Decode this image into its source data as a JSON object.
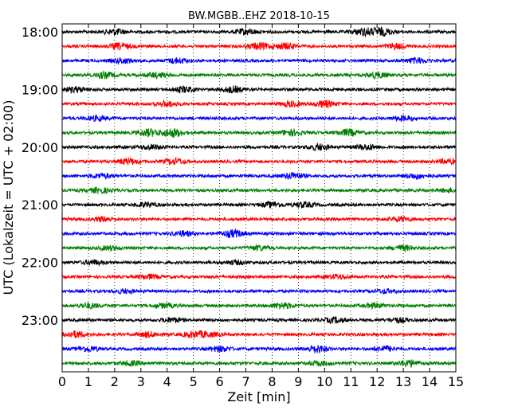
{
  "chart_data": {
    "type": "line",
    "title": "BW.MGBB..EHZ 2018-10-15",
    "xlabel": "Zeit  [min]",
    "ylabel": "UTC (Lokalzeit = UTC + 02:00)",
    "xlim": [
      0,
      15
    ],
    "x_ticks": [
      0,
      1,
      2,
      3,
      4,
      5,
      6,
      7,
      8,
      9,
      10,
      11,
      12,
      13,
      14,
      15
    ],
    "y_tick_labels": [
      "18:00",
      "19:00",
      "20:00",
      "21:00",
      "22:00",
      "23:00"
    ],
    "trace_interval_minutes": 15,
    "grid": "vertical dotted at each minute",
    "series_colors": [
      "#000000",
      "#ff0000",
      "#0000ff",
      "#008000"
    ],
    "traces": [
      {
        "start": "18:00",
        "color": "#000000",
        "bursts": [
          {
            "x": 2.0,
            "amp": 0.8
          },
          {
            "x": 7.0,
            "amp": 0.8
          },
          {
            "x": 11.5,
            "amp": 1.0
          },
          {
            "x": 12.2,
            "amp": 1.0
          }
        ]
      },
      {
        "start": "18:15",
        "color": "#ff0000",
        "bursts": [
          {
            "x": 2.2,
            "amp": 0.8
          },
          {
            "x": 7.5,
            "amp": 0.9
          },
          {
            "x": 8.5,
            "amp": 0.8
          },
          {
            "x": 12.7,
            "amp": 0.7
          }
        ]
      },
      {
        "start": "18:30",
        "color": "#0000ff",
        "bursts": [
          {
            "x": 2.3,
            "amp": 0.7
          },
          {
            "x": 4.4,
            "amp": 0.7
          },
          {
            "x": 13.5,
            "amp": 0.7
          }
        ]
      },
      {
        "start": "18:45",
        "color": "#008000",
        "bursts": [
          {
            "x": 1.6,
            "amp": 0.8
          },
          {
            "x": 3.6,
            "amp": 0.7
          },
          {
            "x": 12.0,
            "amp": 0.8
          }
        ]
      },
      {
        "start": "19:00",
        "color": "#000000",
        "bursts": [
          {
            "x": 0.5,
            "amp": 0.7
          },
          {
            "x": 4.6,
            "amp": 0.8
          },
          {
            "x": 6.5,
            "amp": 0.8
          }
        ]
      },
      {
        "start": "19:15",
        "color": "#ff0000",
        "bursts": [
          {
            "x": 4.0,
            "amp": 0.7
          },
          {
            "x": 8.7,
            "amp": 0.7
          },
          {
            "x": 10.0,
            "amp": 0.9
          }
        ]
      },
      {
        "start": "19:30",
        "color": "#0000ff",
        "bursts": [
          {
            "x": 1.3,
            "amp": 0.6
          },
          {
            "x": 13.0,
            "amp": 0.6
          }
        ]
      },
      {
        "start": "19:45",
        "color": "#008000",
        "bursts": [
          {
            "x": 3.3,
            "amp": 1.0
          },
          {
            "x": 4.2,
            "amp": 1.2
          },
          {
            "x": 8.7,
            "amp": 0.8
          },
          {
            "x": 10.9,
            "amp": 0.9
          }
        ]
      },
      {
        "start": "20:00",
        "color": "#000000",
        "bursts": [
          {
            "x": 3.4,
            "amp": 0.6
          },
          {
            "x": 9.8,
            "amp": 0.8
          },
          {
            "x": 11.6,
            "amp": 0.7
          }
        ]
      },
      {
        "start": "20:15",
        "color": "#ff0000",
        "bursts": [
          {
            "x": 2.5,
            "amp": 0.8
          },
          {
            "x": 4.3,
            "amp": 0.8
          },
          {
            "x": 14.7,
            "amp": 0.6
          }
        ]
      },
      {
        "start": "20:30",
        "color": "#0000ff",
        "bursts": [
          {
            "x": 1.5,
            "amp": 0.6
          },
          {
            "x": 8.8,
            "amp": 0.9
          },
          {
            "x": 13.5,
            "amp": 0.7
          }
        ]
      },
      {
        "start": "20:45",
        "color": "#008000",
        "bursts": [
          {
            "x": 1.4,
            "amp": 0.7
          },
          {
            "x": 14.8,
            "amp": 0.5
          }
        ]
      },
      {
        "start": "21:00",
        "color": "#000000",
        "bursts": [
          {
            "x": 3.2,
            "amp": 0.6
          },
          {
            "x": 8.0,
            "amp": 0.7
          },
          {
            "x": 9.2,
            "amp": 0.7
          }
        ]
      },
      {
        "start": "21:15",
        "color": "#ff0000",
        "bursts": [
          {
            "x": 1.6,
            "amp": 0.6
          },
          {
            "x": 12.9,
            "amp": 0.6
          }
        ]
      },
      {
        "start": "21:30",
        "color": "#0000ff",
        "bursts": [
          {
            "x": 4.6,
            "amp": 0.7
          },
          {
            "x": 6.5,
            "amp": 1.0
          }
        ]
      },
      {
        "start": "21:45",
        "color": "#008000",
        "bursts": [
          {
            "x": 1.8,
            "amp": 0.5
          },
          {
            "x": 7.5,
            "amp": 0.6
          },
          {
            "x": 13.0,
            "amp": 0.7
          }
        ]
      },
      {
        "start": "22:00",
        "color": "#000000",
        "bursts": [
          {
            "x": 1.2,
            "amp": 0.6
          },
          {
            "x": 6.6,
            "amp": 0.5
          }
        ]
      },
      {
        "start": "22:15",
        "color": "#ff0000",
        "bursts": [
          {
            "x": 3.3,
            "amp": 0.6
          },
          {
            "x": 10.5,
            "amp": 0.6
          }
        ]
      },
      {
        "start": "22:30",
        "color": "#0000ff",
        "bursts": [
          {
            "x": 2.4,
            "amp": 0.5
          },
          {
            "x": 12.3,
            "amp": 0.5
          }
        ]
      },
      {
        "start": "22:45",
        "color": "#008000",
        "bursts": [
          {
            "x": 1.0,
            "amp": 0.7
          },
          {
            "x": 3.9,
            "amp": 0.6
          },
          {
            "x": 8.4,
            "amp": 0.8
          },
          {
            "x": 11.9,
            "amp": 0.6
          }
        ]
      },
      {
        "start": "23:00",
        "color": "#000000",
        "bursts": [
          {
            "x": 4.2,
            "amp": 0.6
          },
          {
            "x": 10.4,
            "amp": 0.7
          },
          {
            "x": 12.8,
            "amp": 0.6
          }
        ]
      },
      {
        "start": "23:15",
        "color": "#ff0000",
        "bursts": [
          {
            "x": 0.5,
            "amp": 0.9
          },
          {
            "x": 3.3,
            "amp": 0.7
          },
          {
            "x": 5.0,
            "amp": 0.8
          },
          {
            "x": 5.6,
            "amp": 0.6
          }
        ]
      },
      {
        "start": "23:30",
        "color": "#0000ff",
        "bursts": [
          {
            "x": 1.0,
            "amp": 0.7
          },
          {
            "x": 6.0,
            "amp": 0.7
          },
          {
            "x": 9.7,
            "amp": 1.0
          },
          {
            "x": 12.3,
            "amp": 0.7
          }
        ]
      },
      {
        "start": "23:45",
        "color": "#008000",
        "bursts": [
          {
            "x": 2.6,
            "amp": 0.6
          },
          {
            "x": 9.8,
            "amp": 0.6
          },
          {
            "x": 13.2,
            "amp": 0.9
          }
        ]
      }
    ]
  }
}
